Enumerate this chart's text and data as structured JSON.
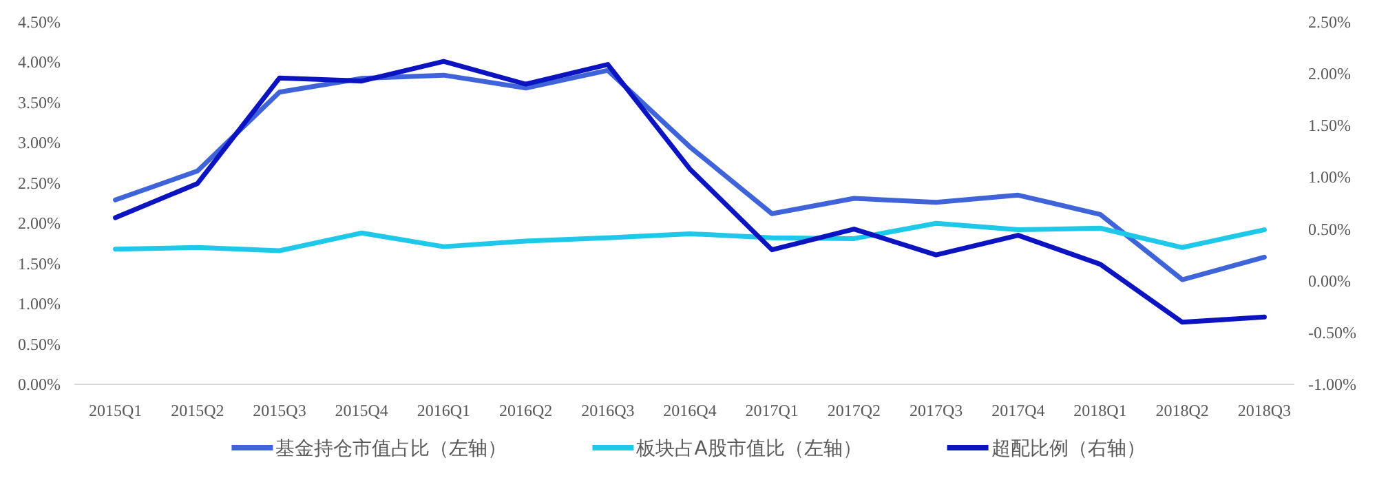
{
  "chart_data": {
    "type": "line",
    "categories": [
      "2015Q1",
      "2015Q2",
      "2015Q3",
      "2015Q4",
      "2016Q1",
      "2016Q2",
      "2016Q3",
      "2016Q4",
      "2017Q1",
      "2017Q2",
      "2017Q3",
      "2017Q4",
      "2018Q1",
      "2018Q2",
      "2018Q3"
    ],
    "series": [
      {
        "name": "基金持仓市值占比（左轴）",
        "color": "#3f63d8",
        "values": [
          2.29,
          2.65,
          3.63,
          3.8,
          3.84,
          3.68,
          3.9,
          2.95,
          2.12,
          2.31,
          2.26,
          2.35,
          2.11,
          1.3,
          1.58
        ]
      },
      {
        "name": "板块占A股市值比（左轴）",
        "color": "#1ec8e8",
        "values": [
          1.68,
          1.7,
          1.66,
          1.88,
          1.71,
          1.78,
          1.82,
          1.87,
          1.82,
          1.81,
          2.0,
          1.92,
          1.94,
          1.7,
          1.92
        ]
      },
      {
        "name": "超配比例（右轴）",
        "color": "#0b14c0",
        "axis": "y2",
        "values": [
          0.61,
          0.94,
          1.96,
          1.93,
          2.12,
          1.9,
          2.09,
          1.08,
          0.3,
          0.5,
          0.25,
          0.44,
          0.16,
          -0.4,
          -0.35
        ]
      }
    ],
    "ylim": [
      0,
      4.5
    ],
    "yticks": [
      {
        "value": 0,
        "label": "0.00%"
      },
      {
        "value": 0.5,
        "label": "0.50%"
      },
      {
        "value": 1,
        "label": "1.00%"
      },
      {
        "value": 1.5,
        "label": "1.50%"
      },
      {
        "value": 2,
        "label": "2.00%"
      },
      {
        "value": 2.5,
        "label": "2.50%"
      },
      {
        "value": 3,
        "label": "3.00%"
      },
      {
        "value": 3.5,
        "label": "3.50%"
      },
      {
        "value": 4,
        "label": "4.00%"
      },
      {
        "value": 4.5,
        "label": "4.50%"
      }
    ],
    "y2lim": [
      -1,
      2.5
    ],
    "y2ticks": [
      {
        "value": -1,
        "label": "-1.00%"
      },
      {
        "value": -0.5,
        "label": "-0.50%"
      },
      {
        "value": 0,
        "label": "0.00%"
      },
      {
        "value": 0.5,
        "label": "0.50%"
      },
      {
        "value": 1,
        "label": "1.00%"
      },
      {
        "value": 1.5,
        "label": "1.50%"
      },
      {
        "value": 2,
        "label": "2.00%"
      },
      {
        "value": 2.5,
        "label": "2.50%"
      }
    ],
    "grid": false,
    "legend": "bottom",
    "marker": "none",
    "line_style": "solid"
  }
}
